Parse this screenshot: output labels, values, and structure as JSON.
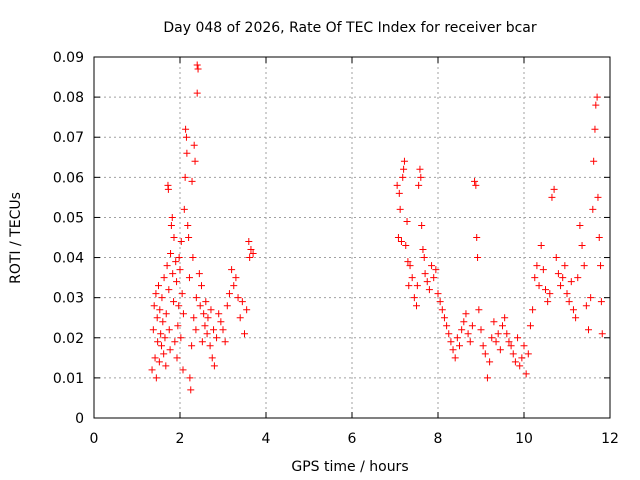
{
  "chart_data": {
    "type": "scatter",
    "title": "Day 048 of 2026, Rate Of TEC Index for receiver bcar",
    "xlabel": "GPS time / hours",
    "ylabel": "ROTI / TECUs",
    "xlim": [
      0,
      12
    ],
    "ylim": [
      0,
      0.09
    ],
    "x_ticks": [
      0,
      2,
      4,
      6,
      8,
      10,
      12
    ],
    "y_ticks": [
      0,
      0.01,
      0.02,
      0.03,
      0.04,
      0.05,
      0.06,
      0.07,
      0.08,
      0.09
    ],
    "x_tick_labels": [
      "0",
      "2",
      "4",
      "6",
      "8",
      "10",
      "12"
    ],
    "y_tick_labels": [
      "0",
      "0.01",
      "0.02",
      "0.03",
      "0.04",
      "0.05",
      "0.06",
      "0.07",
      "0.08",
      "0.09"
    ],
    "grid": true,
    "legend": "none",
    "marker": "+",
    "color": "#ff0000",
    "series": [
      {
        "points": [
          [
            1.35,
            0.012
          ],
          [
            1.38,
            0.022
          ],
          [
            1.4,
            0.028
          ],
          [
            1.42,
            0.015
          ],
          [
            1.44,
            0.031
          ],
          [
            1.45,
            0.01
          ],
          [
            1.47,
            0.025
          ],
          [
            1.48,
            0.019
          ],
          [
            1.5,
            0.033
          ],
          [
            1.52,
            0.014
          ],
          [
            1.53,
            0.027
          ],
          [
            1.55,
            0.021
          ],
          [
            1.57,
            0.018
          ],
          [
            1.58,
            0.03
          ],
          [
            1.6,
            0.024
          ],
          [
            1.62,
            0.016
          ],
          [
            1.63,
            0.035
          ],
          [
            1.65,
            0.02
          ],
          [
            1.67,
            0.013
          ],
          [
            1.68,
            0.026
          ],
          [
            1.7,
            0.038
          ],
          [
            1.72,
            0.058
          ],
          [
            1.73,
            0.057
          ],
          [
            1.74,
            0.032
          ],
          [
            1.75,
            0.022
          ],
          [
            1.77,
            0.017
          ],
          [
            1.78,
            0.041
          ],
          [
            1.8,
            0.048
          ],
          [
            1.82,
            0.05
          ],
          [
            1.83,
            0.036
          ],
          [
            1.85,
            0.029
          ],
          [
            1.86,
            0.045
          ],
          [
            1.88,
            0.019
          ],
          [
            1.9,
            0.039
          ],
          [
            1.92,
            0.034
          ],
          [
            1.93,
            0.015
          ],
          [
            1.95,
            0.023
          ],
          [
            1.97,
            0.028
          ],
          [
            1.98,
            0.04
          ],
          [
            2.0,
            0.037
          ],
          [
            2.02,
            0.02
          ],
          [
            2.03,
            0.044
          ],
          [
            2.05,
            0.031
          ],
          [
            2.07,
            0.012
          ],
          [
            2.08,
            0.026
          ],
          [
            2.1,
            0.052
          ],
          [
            2.12,
            0.06
          ],
          [
            2.13,
            0.072
          ],
          [
            2.15,
            0.07
          ],
          [
            2.16,
            0.066
          ],
          [
            2.18,
            0.048
          ],
          [
            2.2,
            0.045
          ],
          [
            2.22,
            0.035
          ],
          [
            2.23,
            0.01
          ],
          [
            2.25,
            0.007
          ],
          [
            2.27,
            0.018
          ],
          [
            2.28,
            0.059
          ],
          [
            2.3,
            0.04
          ],
          [
            2.32,
            0.025
          ],
          [
            2.33,
            0.068
          ],
          [
            2.35,
            0.064
          ],
          [
            2.37,
            0.022
          ],
          [
            2.38,
            0.03
          ],
          [
            2.4,
            0.081
          ],
          [
            2.4,
            0.088
          ],
          [
            2.42,
            0.087
          ],
          [
            2.45,
            0.036
          ],
          [
            2.47,
            0.028
          ],
          [
            2.5,
            0.033
          ],
          [
            2.52,
            0.019
          ],
          [
            2.55,
            0.026
          ],
          [
            2.58,
            0.023
          ],
          [
            2.6,
            0.029
          ],
          [
            2.63,
            0.021
          ],
          [
            2.65,
            0.025
          ],
          [
            2.7,
            0.018
          ],
          [
            2.72,
            0.027
          ],
          [
            2.75,
            0.015
          ],
          [
            2.78,
            0.022
          ],
          [
            2.8,
            0.013
          ],
          [
            2.85,
            0.02
          ],
          [
            2.9,
            0.026
          ],
          [
            2.95,
            0.024
          ],
          [
            3.0,
            0.022
          ],
          [
            3.05,
            0.019
          ],
          [
            3.1,
            0.028
          ],
          [
            3.15,
            0.031
          ],
          [
            3.2,
            0.037
          ],
          [
            3.25,
            0.033
          ],
          [
            3.3,
            0.035
          ],
          [
            3.35,
            0.03
          ],
          [
            3.4,
            0.025
          ],
          [
            3.45,
            0.029
          ],
          [
            3.5,
            0.021
          ],
          [
            3.55,
            0.027
          ],
          [
            3.6,
            0.044
          ],
          [
            3.62,
            0.04
          ],
          [
            3.65,
            0.042
          ],
          [
            3.7,
            0.041
          ],
          [
            7.05,
            0.058
          ],
          [
            7.08,
            0.045
          ],
          [
            7.1,
            0.056
          ],
          [
            7.12,
            0.052
          ],
          [
            7.15,
            0.044
          ],
          [
            7.18,
            0.06
          ],
          [
            7.2,
            0.062
          ],
          [
            7.22,
            0.064
          ],
          [
            7.25,
            0.043
          ],
          [
            7.28,
            0.049
          ],
          [
            7.3,
            0.039
          ],
          [
            7.32,
            0.033
          ],
          [
            7.35,
            0.038
          ],
          [
            7.4,
            0.035
          ],
          [
            7.45,
            0.03
          ],
          [
            7.5,
            0.028
          ],
          [
            7.52,
            0.033
          ],
          [
            7.55,
            0.058
          ],
          [
            7.58,
            0.062
          ],
          [
            7.6,
            0.06
          ],
          [
            7.62,
            0.048
          ],
          [
            7.65,
            0.042
          ],
          [
            7.68,
            0.04
          ],
          [
            7.7,
            0.036
          ],
          [
            7.75,
            0.034
          ],
          [
            7.8,
            0.032
          ],
          [
            7.85,
            0.038
          ],
          [
            7.9,
            0.035
          ],
          [
            7.95,
            0.037
          ],
          [
            8.0,
            0.031
          ],
          [
            8.05,
            0.029
          ],
          [
            8.1,
            0.027
          ],
          [
            8.15,
            0.025
          ],
          [
            8.2,
            0.023
          ],
          [
            8.25,
            0.021
          ],
          [
            8.3,
            0.019
          ],
          [
            8.35,
            0.017
          ],
          [
            8.4,
            0.015
          ],
          [
            8.45,
            0.02
          ],
          [
            8.5,
            0.018
          ],
          [
            8.55,
            0.022
          ],
          [
            8.6,
            0.024
          ],
          [
            8.65,
            0.026
          ],
          [
            8.7,
            0.021
          ],
          [
            8.75,
            0.019
          ],
          [
            8.8,
            0.023
          ],
          [
            8.85,
            0.059
          ],
          [
            8.88,
            0.058
          ],
          [
            8.9,
            0.045
          ],
          [
            8.92,
            0.04
          ],
          [
            8.95,
            0.027
          ],
          [
            9.0,
            0.022
          ],
          [
            9.05,
            0.018
          ],
          [
            9.1,
            0.016
          ],
          [
            9.15,
            0.01
          ],
          [
            9.2,
            0.014
          ],
          [
            9.25,
            0.02
          ],
          [
            9.3,
            0.024
          ],
          [
            9.35,
            0.019
          ],
          [
            9.4,
            0.021
          ],
          [
            9.45,
            0.017
          ],
          [
            9.5,
            0.023
          ],
          [
            9.55,
            0.025
          ],
          [
            9.6,
            0.021
          ],
          [
            9.65,
            0.019
          ],
          [
            9.7,
            0.018
          ],
          [
            9.75,
            0.016
          ],
          [
            9.8,
            0.014
          ],
          [
            9.85,
            0.02
          ],
          [
            9.9,
            0.013
          ],
          [
            9.95,
            0.015
          ],
          [
            10.0,
            0.018
          ],
          [
            10.05,
            0.011
          ],
          [
            10.1,
            0.016
          ],
          [
            10.15,
            0.023
          ],
          [
            10.2,
            0.027
          ],
          [
            10.25,
            0.035
          ],
          [
            10.3,
            0.038
          ],
          [
            10.35,
            0.033
          ],
          [
            10.4,
            0.043
          ],
          [
            10.45,
            0.037
          ],
          [
            10.5,
            0.032
          ],
          [
            10.55,
            0.029
          ],
          [
            10.6,
            0.031
          ],
          [
            10.65,
            0.055
          ],
          [
            10.7,
            0.057
          ],
          [
            10.75,
            0.04
          ],
          [
            10.8,
            0.036
          ],
          [
            10.85,
            0.033
          ],
          [
            10.9,
            0.035
          ],
          [
            10.95,
            0.038
          ],
          [
            11.0,
            0.031
          ],
          [
            11.05,
            0.029
          ],
          [
            11.1,
            0.034
          ],
          [
            11.15,
            0.027
          ],
          [
            11.2,
            0.025
          ],
          [
            11.25,
            0.035
          ],
          [
            11.3,
            0.048
          ],
          [
            11.35,
            0.043
          ],
          [
            11.4,
            0.038
          ],
          [
            11.45,
            0.028
          ],
          [
            11.5,
            0.022
          ],
          [
            11.55,
            0.03
          ],
          [
            11.6,
            0.052
          ],
          [
            11.62,
            0.064
          ],
          [
            11.65,
            0.072
          ],
          [
            11.67,
            0.078
          ],
          [
            11.7,
            0.08
          ],
          [
            11.72,
            0.055
          ],
          [
            11.75,
            0.045
          ],
          [
            11.78,
            0.038
          ],
          [
            11.8,
            0.029
          ],
          [
            11.82,
            0.021
          ]
        ]
      }
    ]
  }
}
